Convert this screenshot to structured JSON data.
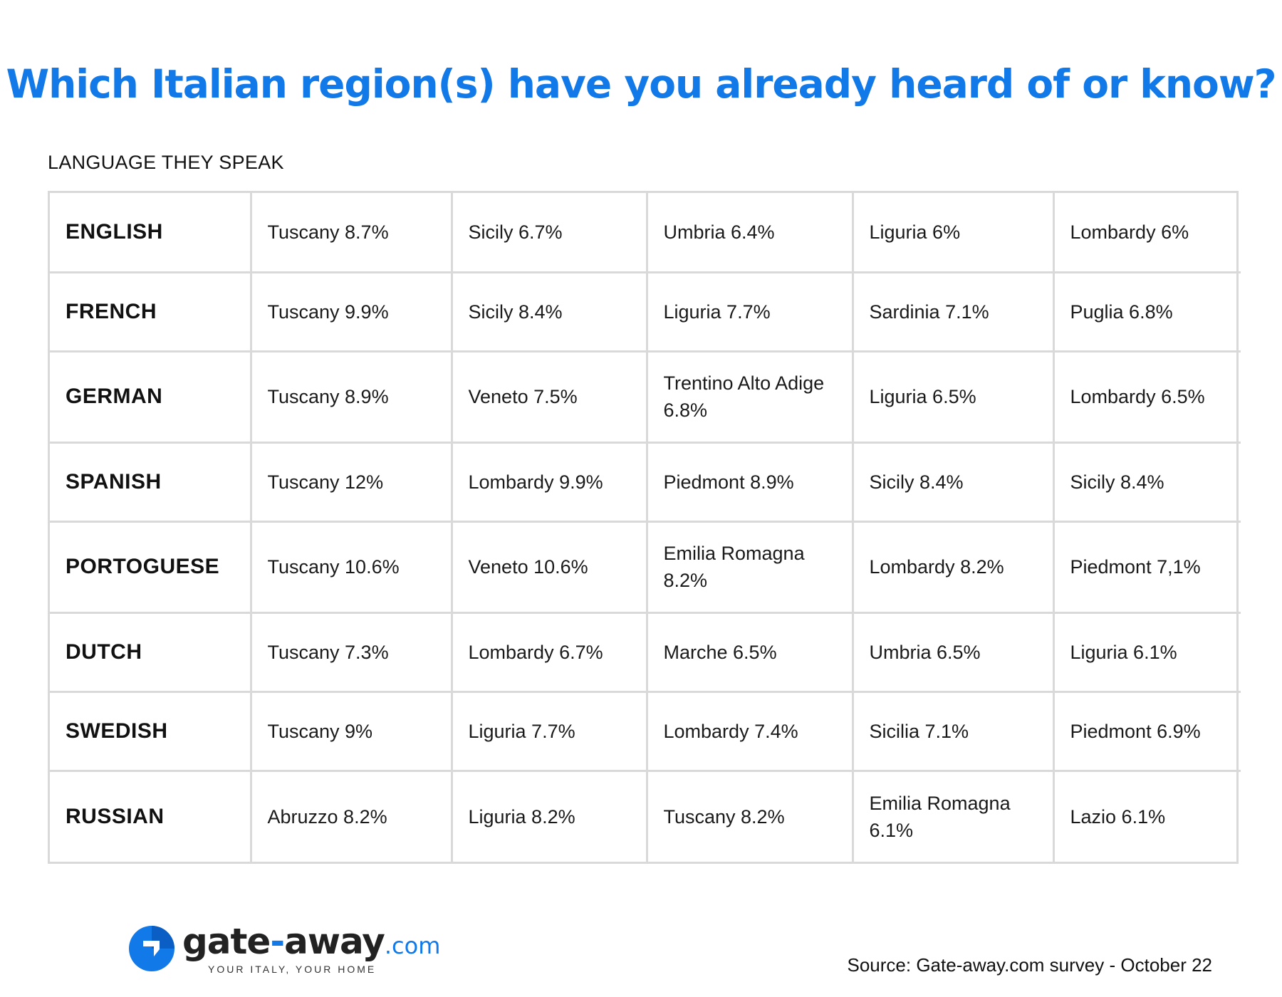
{
  "title": "Which Italian region(s) have you already heard of or know?",
  "subtitle": "LANGUAGE THEY SPEAK",
  "table": {
    "rows": [
      {
        "language": "ENGLISH",
        "regions": [
          "Tuscany 8.7%",
          "Sicily 6.7%",
          "Umbria 6.4%",
          "Liguria 6%",
          "Lombardy 6%"
        ]
      },
      {
        "language": "FRENCH",
        "regions": [
          "Tuscany 9.9%",
          "Sicily 8.4%",
          "Liguria 7.7%",
          "Sardinia 7.1%",
          "Puglia 6.8%"
        ]
      },
      {
        "language": "GERMAN",
        "regions": [
          "Tuscany 8.9%",
          "Veneto 7.5%",
          "Trentino Alto Adige 6.8%",
          "Liguria 6.5%",
          "Lombardy 6.5%"
        ]
      },
      {
        "language": "SPANISH",
        "regions": [
          "Tuscany  12%",
          "Lombardy 9.9%",
          "Piedmont 8.9%",
          "Sicily 8.4%",
          "Sicily 8.4%"
        ]
      },
      {
        "language": "PORTOGUESE",
        "regions": [
          "Tuscany  10.6%",
          "Veneto 10.6%",
          "Emilia Romagna 8.2%",
          "Lombardy 8.2%",
          "Piedmont 7,1%"
        ]
      },
      {
        "language": "DUTCH",
        "regions": [
          "Tuscany  7.3%",
          "Lombardy 6.7%",
          "Marche 6.5%",
          "Umbria 6.5%",
          "Liguria 6.1%"
        ]
      },
      {
        "language": "SWEDISH",
        "regions": [
          "Tuscany  9%",
          "Liguria 7.7%",
          "Lombardy 7.4%",
          "Sicilia 7.1%",
          "Piedmont 6.9%"
        ]
      },
      {
        "language": "RUSSIAN",
        "regions": [
          "Abruzzo 8.2%",
          "Liguria 8.2%",
          "Tuscany 8.2%",
          "Emilia Romagna 6.1%",
          "Lazio 6.1%"
        ]
      }
    ]
  },
  "logo": {
    "name_part1": "gate",
    "dash": "-",
    "name_part2": "away",
    "tld": ".com",
    "tagline": "YOUR ITALY, YOUR HOME"
  },
  "source": "Source: Gate-away.com survey - October 22",
  "colors": {
    "accent": "#1279e8",
    "grid": "#d9d9d9",
    "text": "#1a1a1a"
  }
}
